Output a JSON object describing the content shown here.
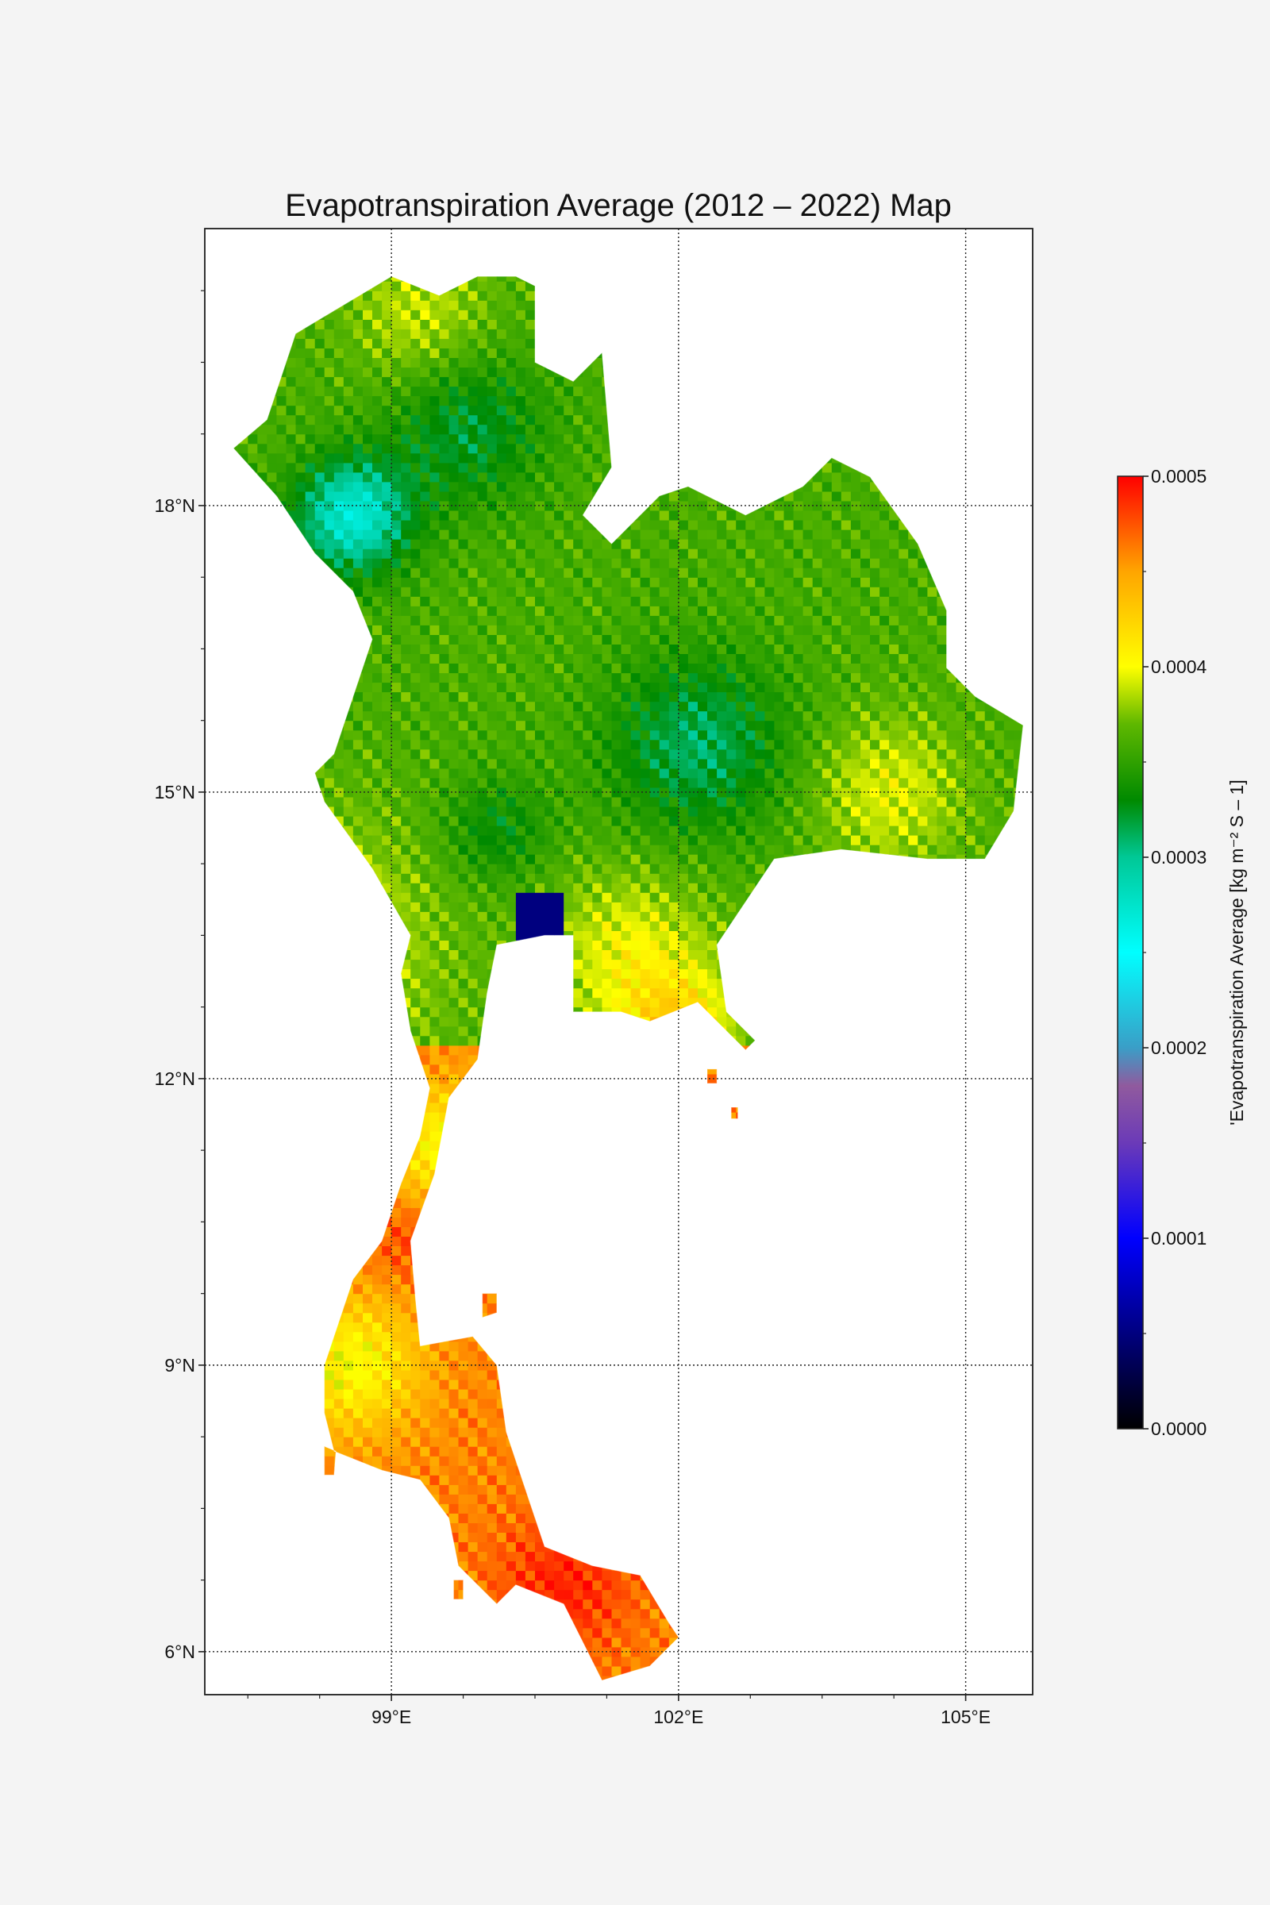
{
  "map": {
    "title": "Evapotranspiration Average (2012 – 2022) Map",
    "extent": {
      "lon_min": 97.05,
      "lon_max": 105.7,
      "lat_min": 5.55,
      "lat_max": 20.9
    },
    "lon_ticks": [
      {
        "value": 99,
        "label": "99°E"
      },
      {
        "value": 102,
        "label": "102°E"
      },
      {
        "value": 105,
        "label": "105°E"
      }
    ],
    "lat_ticks": [
      {
        "value": 18,
        "label": "18°N"
      },
      {
        "value": 15,
        "label": "15°N"
      },
      {
        "value": 12,
        "label": "12°N"
      },
      {
        "value": 9,
        "label": "9°N"
      },
      {
        "value": 6,
        "label": "6°N"
      }
    ],
    "gridlines": true,
    "country_outline": [
      [
        97.35,
        18.6
      ],
      [
        97.7,
        18.9
      ],
      [
        98.0,
        19.8
      ],
      [
        98.5,
        20.1
      ],
      [
        99.0,
        20.4
      ],
      [
        99.5,
        20.2
      ],
      [
        99.9,
        20.4
      ],
      [
        100.3,
        20.4
      ],
      [
        100.5,
        20.3
      ],
      [
        100.5,
        19.5
      ],
      [
        100.9,
        19.3
      ],
      [
        101.2,
        19.6
      ],
      [
        101.3,
        18.4
      ],
      [
        101.0,
        17.9
      ],
      [
        101.3,
        17.6
      ],
      [
        101.8,
        18.1
      ],
      [
        102.1,
        18.2
      ],
      [
        102.7,
        17.9
      ],
      [
        103.3,
        18.2
      ],
      [
        103.6,
        18.5
      ],
      [
        104.0,
        18.3
      ],
      [
        104.5,
        17.6
      ],
      [
        104.8,
        16.9
      ],
      [
        104.8,
        16.3
      ],
      [
        105.1,
        16.0
      ],
      [
        105.6,
        15.7
      ],
      [
        105.5,
        14.8
      ],
      [
        105.2,
        14.3
      ],
      [
        104.6,
        14.3
      ],
      [
        103.7,
        14.4
      ],
      [
        103.0,
        14.3
      ],
      [
        102.6,
        13.7
      ],
      [
        102.4,
        13.4
      ],
      [
        102.5,
        12.7
      ],
      [
        102.8,
        12.4
      ],
      [
        102.7,
        12.3
      ],
      [
        102.2,
        12.8
      ],
      [
        101.7,
        12.6
      ],
      [
        101.4,
        12.7
      ],
      [
        100.9,
        12.7
      ],
      [
        100.9,
        13.5
      ],
      [
        100.6,
        13.5
      ],
      [
        100.1,
        13.4
      ],
      [
        100.0,
        12.9
      ],
      [
        99.9,
        12.2
      ],
      [
        99.6,
        11.8
      ],
      [
        99.45,
        11.0
      ],
      [
        99.2,
        10.3
      ],
      [
        99.25,
        9.7
      ],
      [
        99.3,
        9.2
      ],
      [
        99.85,
        9.3
      ],
      [
        100.1,
        9.0
      ],
      [
        100.2,
        8.3
      ],
      [
        100.4,
        7.7
      ],
      [
        100.6,
        7.1
      ],
      [
        101.1,
        6.9
      ],
      [
        101.6,
        6.8
      ],
      [
        101.9,
        6.3
      ],
      [
        102.0,
        6.15
      ],
      [
        101.7,
        5.85
      ],
      [
        101.2,
        5.7
      ],
      [
        101.0,
        6.1
      ],
      [
        100.8,
        6.5
      ],
      [
        100.3,
        6.7
      ],
      [
        100.1,
        6.5
      ],
      [
        99.7,
        6.9
      ],
      [
        99.6,
        7.4
      ],
      [
        99.3,
        7.8
      ],
      [
        98.9,
        7.9
      ],
      [
        98.4,
        8.1
      ],
      [
        98.3,
        8.5
      ],
      [
        98.3,
        9.0
      ],
      [
        98.6,
        9.9
      ],
      [
        98.9,
        10.3
      ],
      [
        99.1,
        10.9
      ],
      [
        99.3,
        11.4
      ],
      [
        99.4,
        11.9
      ],
      [
        99.2,
        12.5
      ],
      [
        99.1,
        13.1
      ],
      [
        99.2,
        13.5
      ],
      [
        98.8,
        14.2
      ],
      [
        98.3,
        14.9
      ],
      [
        98.2,
        15.2
      ],
      [
        98.4,
        15.4
      ],
      [
        98.6,
        16.0
      ],
      [
        98.8,
        16.6
      ],
      [
        98.6,
        17.1
      ],
      [
        98.2,
        17.5
      ],
      [
        97.8,
        18.1
      ],
      [
        97.35,
        18.6
      ]
    ],
    "islands": [
      [
        [
          98.3,
          7.85
        ],
        [
          98.4,
          7.85
        ],
        [
          98.42,
          8.1
        ],
        [
          98.3,
          8.15
        ]
      ],
      [
        [
          99.95,
          9.75
        ],
        [
          100.1,
          9.75
        ],
        [
          100.1,
          9.55
        ],
        [
          99.95,
          9.5
        ]
      ],
      [
        [
          102.3,
          12.1
        ],
        [
          102.4,
          12.1
        ],
        [
          102.4,
          11.95
        ],
        [
          102.3,
          11.95
        ]
      ],
      [
        [
          102.55,
          11.7
        ],
        [
          102.62,
          11.7
        ],
        [
          102.62,
          11.58
        ],
        [
          102.55,
          11.58
        ]
      ],
      [
        [
          99.65,
          6.75
        ],
        [
          99.75,
          6.75
        ],
        [
          99.75,
          6.55
        ],
        [
          99.65,
          6.55
        ]
      ]
    ]
  },
  "colorbar": {
    "label": "'Evapotranspiration Average [kg m⁻² S – 1]",
    "min": 0.0,
    "max": 0.0005,
    "ticks": [
      {
        "value": 0.0005,
        "label": "0.0005"
      },
      {
        "value": 0.0004,
        "label": "0.0004"
      },
      {
        "value": 0.0003,
        "label": "0.0003"
      },
      {
        "value": 0.0002,
        "label": "0.0002"
      },
      {
        "value": 0.0001,
        "label": "0.0001"
      },
      {
        "value": 0.0,
        "label": "0.0000"
      }
    ],
    "color_stops": [
      {
        "value": 0.0,
        "color": "#000000"
      },
      {
        "value": 5e-05,
        "color": "#00007f"
      },
      {
        "value": 0.0001,
        "color": "#0000ff"
      },
      {
        "value": 0.00015,
        "color": "#6b3ab8"
      },
      {
        "value": 0.00018,
        "color": "#905a9e"
      },
      {
        "value": 0.0002,
        "color": "#3a9ec7"
      },
      {
        "value": 0.00025,
        "color": "#00ffff"
      },
      {
        "value": 0.0003,
        "color": "#00c896"
      },
      {
        "value": 0.00033,
        "color": "#008a00"
      },
      {
        "value": 0.00037,
        "color": "#5fb800"
      },
      {
        "value": 0.0004,
        "color": "#ffff00"
      },
      {
        "value": 0.00045,
        "color": "#ffa500"
      },
      {
        "value": 0.0005,
        "color": "#ff0000"
      }
    ]
  },
  "chart_data": {
    "type": "heatmap",
    "title": "Evapotranspiration Average (2012 – 2022) Map",
    "value_range": [
      0.0,
      0.0005
    ],
    "x_ticks": [
      "99°E",
      "102°E",
      "105°E"
    ],
    "y_ticks": [
      "18°N",
      "15°N",
      "12°N",
      "9°N",
      "6°N"
    ],
    "regions": [
      {
        "lat_range": [
          18.0,
          20.5
        ],
        "lon_range": [
          97.3,
          101.5
        ],
        "approx_value": 0.00034
      },
      {
        "lat_range": [
          17.5,
          18.3
        ],
        "lon_range": [
          98.0,
          99.2
        ],
        "approx_value": 0.00027
      },
      {
        "lat_range": [
          14.5,
          18.5
        ],
        "lon_range": [
          99.0,
          105.6
        ],
        "approx_value": 0.00033
      },
      {
        "lat_range": [
          12.5,
          14.0
        ],
        "lon_range": [
          100.5,
          102.7
        ],
        "approx_value": 0.00041
      },
      {
        "lat_range": [
          13.5,
          13.8
        ],
        "lon_range": [
          100.4,
          100.7
        ],
        "approx_value": 5e-05
      },
      {
        "lat_range": [
          5.6,
          10.5
        ],
        "lon_range": [
          98.3,
          102.0
        ],
        "approx_value": 0.00046
      }
    ]
  }
}
